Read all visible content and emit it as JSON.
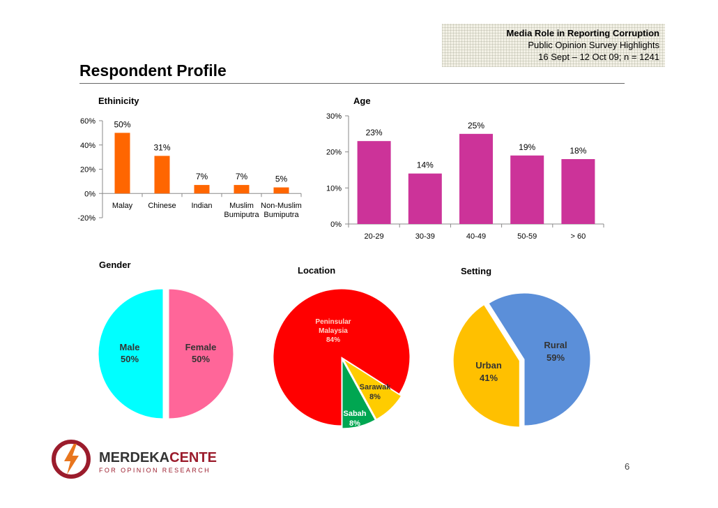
{
  "header": {
    "line1": "Media Role in Reporting Corruption",
    "line2": "Public Opinion Survey Highlights",
    "line3": "16 Sept – 12 Oct 09; n = 1241"
  },
  "page_title": "Respondent Profile",
  "page_number": "6",
  "logo": {
    "name_part1": "MERDEKA",
    "name_part2": "CENTER",
    "tagline": "FOR OPINION RESEARCH"
  },
  "colors": {
    "ethnicity_bar": "#ff6600",
    "age_bar": "#cc3399",
    "male": "#00ffff",
    "female": "#ff6699",
    "peninsular": "#ff0000",
    "sarawak": "#ffcc00",
    "sabah": "#00a651",
    "urban": "#ffc000",
    "rural": "#5b8fd9",
    "logo": "#9b1c2c"
  },
  "chart_data": [
    {
      "type": "bar",
      "title": "Ethinicity",
      "categories": [
        [
          "Malay"
        ],
        [
          "Chinese"
        ],
        [
          "Indian"
        ],
        [
          "Muslim",
          "Bumiputra"
        ],
        [
          "Non-Muslim",
          "Bumiputra"
        ]
      ],
      "values": [
        50,
        31,
        7,
        7,
        5
      ],
      "data_labels": [
        "50%",
        "31%",
        "7%",
        "7%",
        "5%"
      ],
      "ylim": [
        -20,
        60
      ],
      "yticks": [
        60,
        40,
        20,
        0,
        -20
      ],
      "ytick_labels": [
        "60%",
        "40%",
        "20%",
        "0%",
        "-20%"
      ]
    },
    {
      "type": "bar",
      "title": "Age",
      "categories": [
        [
          "20-29"
        ],
        [
          "30-39"
        ],
        [
          "40-49"
        ],
        [
          "50-59"
        ],
        [
          "> 60"
        ]
      ],
      "values": [
        23,
        14,
        25,
        19,
        18
      ],
      "data_labels": [
        "23%",
        "14%",
        "25%",
        "19%",
        "18%"
      ],
      "ylim": [
        0,
        30
      ],
      "yticks": [
        30,
        20,
        10,
        0
      ],
      "ytick_labels": [
        "30%",
        "20%",
        "10%",
        "0%"
      ]
    },
    {
      "type": "pie",
      "title": "Gender",
      "slices": [
        {
          "label": "Male",
          "value": 50,
          "value_label": "50%"
        },
        {
          "label": "Female",
          "value": 50,
          "value_label": "50%"
        }
      ]
    },
    {
      "type": "pie",
      "title": "Location",
      "slices": [
        {
          "label": "Peninsular Malaysia",
          "value": 84,
          "value_label": "84%"
        },
        {
          "label": "Sarawak",
          "value": 8,
          "value_label": "8%"
        },
        {
          "label": "Sabah",
          "value": 8,
          "value_label": "8%"
        }
      ]
    },
    {
      "type": "pie",
      "title": "Setting",
      "slices": [
        {
          "label": "Urban",
          "value": 41,
          "value_label": "41%"
        },
        {
          "label": "Rural",
          "value": 59,
          "value_label": "59%"
        }
      ]
    }
  ]
}
